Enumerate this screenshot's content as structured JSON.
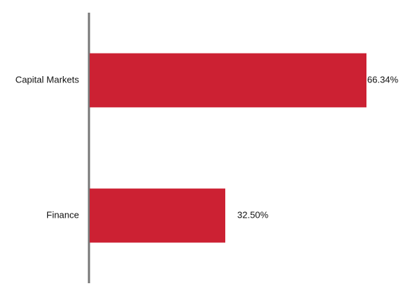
{
  "chart_data": {
    "type": "bar",
    "orientation": "horizontal",
    "categories": [
      "Capital Markets",
      "Finance"
    ],
    "values": [
      66.34,
      32.5
    ],
    "value_labels": [
      "66.34%",
      "32.50%"
    ],
    "color": "#cc2133"
  }
}
